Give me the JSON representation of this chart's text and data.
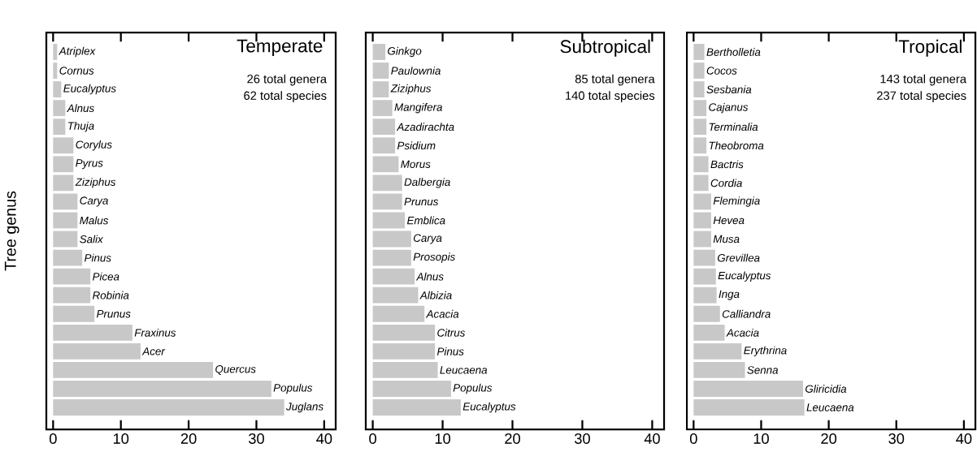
{
  "chart_data": [
    {
      "type": "bar",
      "orientation": "horizontal",
      "title": "Temperate",
      "ylabel": "Tree genus",
      "annotations": [
        "26 total genera",
        "62 total species"
      ],
      "color": "#c8c8c8",
      "xlim": [
        -1,
        41.7
      ],
      "xticks": [
        0,
        10,
        20,
        30,
        40
      ],
      "categories": [
        "Atriplex",
        "Cornus",
        "Eucalyptus",
        "Alnus",
        "Thuja",
        "Corylus",
        "Pyrus",
        "Ziziphus",
        "Carya",
        "Malus",
        "Salix",
        "Pinus",
        "Picea",
        "Robinia",
        "Prunus",
        "Fraxinus",
        "Acer",
        "Quercus",
        "Populus",
        "Juglans"
      ],
      "values": [
        0.6,
        0.6,
        1.2,
        1.8,
        1.8,
        3.0,
        3.0,
        3.0,
        3.6,
        3.6,
        3.6,
        4.3,
        5.5,
        5.5,
        6.1,
        11.7,
        12.9,
        23.6,
        32.2,
        34.1
      ]
    },
    {
      "type": "bar",
      "orientation": "horizontal",
      "title": "Subtropical",
      "annotations": [
        "85 total genera",
        "140 total species"
      ],
      "color": "#c8c8c8",
      "xlim": [
        -1,
        41.7
      ],
      "xticks": [
        0,
        10,
        20,
        30,
        40
      ],
      "categories": [
        "Ginkgo",
        "Paulownia",
        "Ziziphus",
        "Mangifera",
        "Azadirachta",
        "Psidium",
        "Morus",
        "Dalbergia",
        "Prunus",
        "Emblica",
        "Carya",
        "Prosopis",
        "Alnus",
        "Albizia",
        "Acacia",
        "Citrus",
        "Pinus",
        "Leucaena",
        "Populus",
        "Eucalyptus"
      ],
      "values": [
        1.8,
        2.3,
        2.3,
        2.8,
        3.2,
        3.2,
        3.7,
        4.2,
        4.2,
        4.6,
        5.5,
        5.5,
        6.0,
        6.5,
        7.4,
        8.9,
        8.9,
        9.3,
        11.2,
        12.6
      ]
    },
    {
      "type": "bar",
      "orientation": "horizontal",
      "title": "Tropical",
      "annotations": [
        "143 total genera",
        "237 total species"
      ],
      "color": "#c8c8c8",
      "xlim": [
        -1,
        41.7
      ],
      "xticks": [
        0,
        10,
        20,
        30,
        40
      ],
      "categories": [
        "Bertholletia",
        "Cocos",
        "Sesbania",
        "Cajanus",
        "Terminalia",
        "Theobroma",
        "Bactris",
        "Cordia",
        "Flemingia",
        "Hevea",
        "Musa",
        "Grevillea",
        "Eucalyptus",
        "Inga",
        "Calliandra",
        "Acacia",
        "Erythrina",
        "Senna",
        "Gliricidia",
        "Leucaena"
      ],
      "values": [
        1.6,
        1.6,
        1.6,
        1.9,
        1.9,
        1.9,
        2.2,
        2.2,
        2.6,
        2.6,
        2.6,
        3.2,
        3.3,
        3.4,
        3.9,
        4.6,
        7.1,
        7.6,
        16.2,
        16.4
      ]
    }
  ]
}
